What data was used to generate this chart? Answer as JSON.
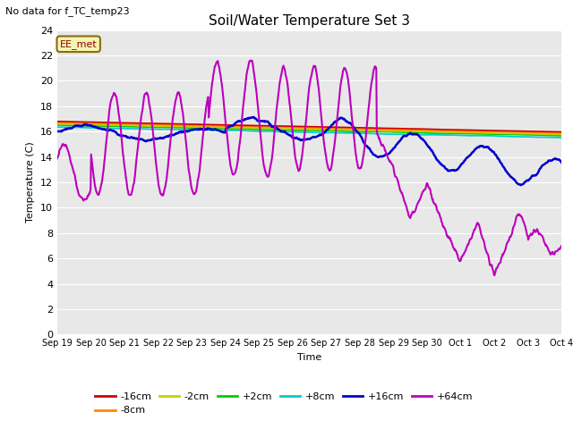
{
  "title": "Soil/Water Temperature Set 3",
  "xlabel": "Time",
  "ylabel": "Temperature (C)",
  "no_data_text": "No data for f_TC_temp23",
  "legend_label_text": "EE_met",
  "ylim": [
    0,
    24
  ],
  "colors": {
    "-16cm": "#cc0000",
    "-8cm": "#ff8800",
    "-2cm": "#cccc00",
    "+2cm": "#00cc00",
    "+8cm": "#00cccc",
    "+16cm": "#0000cc",
    "+64cm": "#bb00bb"
  },
  "background_color": "#e8e8e8",
  "fig_background": "#ffffff",
  "tick_labels": [
    "Sep 19",
    "Sep 20",
    "Sep 21",
    "Sep 22",
    "Sep 23",
    "Sep 24",
    "Sep 25",
    "Sep 26",
    "Sep 27",
    "Sep 28",
    "Sep 29",
    "Sep 30",
    "Oct 1",
    "Oct 2",
    "Oct 3",
    "Oct 4"
  ]
}
